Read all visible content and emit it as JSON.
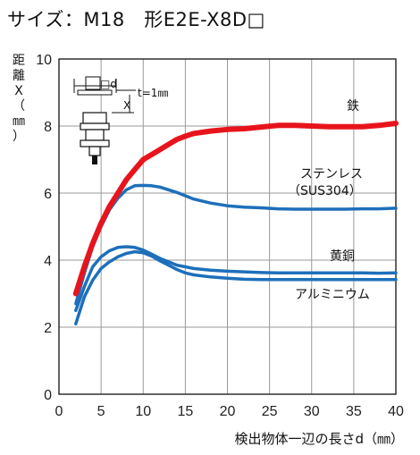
{
  "title": "サイズ：M18　形E2E-X8D□",
  "chart_data": {
    "type": "line",
    "xlabel": "検出物体一辺の長さd（㎜）",
    "ylabel_chars": [
      "距",
      "離",
      "X",
      "（",
      "㎜",
      "）"
    ],
    "xlim": [
      0,
      40
    ],
    "ylim": [
      0,
      10
    ],
    "xticks": [
      "0",
      "5",
      "10",
      "15",
      "20",
      "25",
      "30",
      "35",
      "40"
    ],
    "yticks": [
      "0",
      "2",
      "4",
      "6",
      "8",
      "10"
    ],
    "grid": true,
    "inset": {
      "d_label": "□d",
      "t_label": "t=1㎜",
      "x_label": "X"
    },
    "series": [
      {
        "name": "鉄",
        "color": "#e8141c",
        "width": 6,
        "x": [
          2,
          3,
          4,
          5,
          6,
          7,
          8,
          9,
          10,
          11,
          12,
          13,
          14,
          15,
          16,
          18,
          20,
          22,
          24,
          26,
          28,
          30,
          32,
          34,
          36,
          38,
          40
        ],
        "y": [
          3.0,
          3.8,
          4.5,
          5.1,
          5.6,
          6.0,
          6.4,
          6.7,
          7.0,
          7.15,
          7.3,
          7.45,
          7.6,
          7.7,
          7.78,
          7.85,
          7.9,
          7.92,
          7.97,
          8.02,
          8.02,
          8.0,
          7.98,
          7.98,
          7.98,
          8.02,
          8.08
        ]
      },
      {
        "name": "ステンレス",
        "name2": "（SUS304）",
        "color": "#1e6fba",
        "width": 3.5,
        "x": [
          2,
          3,
          4,
          5,
          6,
          7,
          8,
          9,
          10,
          11,
          12,
          13,
          14,
          15,
          16,
          18,
          20,
          22,
          24,
          26,
          28,
          30,
          32,
          34,
          36,
          38,
          40
        ],
        "y": [
          2.7,
          3.6,
          4.4,
          5.0,
          5.5,
          5.85,
          6.1,
          6.22,
          6.23,
          6.22,
          6.18,
          6.1,
          6.02,
          5.92,
          5.82,
          5.7,
          5.62,
          5.58,
          5.56,
          5.53,
          5.52,
          5.52,
          5.52,
          5.52,
          5.53,
          5.53,
          5.55
        ]
      },
      {
        "name": "黄銅",
        "color": "#1e6fba",
        "width": 3.5,
        "x": [
          2,
          3,
          4,
          5,
          6,
          7,
          8,
          9,
          10,
          11,
          12,
          13,
          14,
          15,
          16,
          18,
          20,
          22,
          24,
          26,
          28,
          30,
          32,
          34,
          36,
          38,
          40
        ],
        "y": [
          2.5,
          3.2,
          3.8,
          4.1,
          4.28,
          4.38,
          4.4,
          4.38,
          4.3,
          4.18,
          4.05,
          3.95,
          3.85,
          3.8,
          3.75,
          3.7,
          3.67,
          3.65,
          3.63,
          3.62,
          3.62,
          3.62,
          3.62,
          3.62,
          3.62,
          3.61,
          3.62
        ]
      },
      {
        "name": "アルミニウム",
        "color": "#1e6fba",
        "width": 3.5,
        "x": [
          2,
          3,
          4,
          5,
          6,
          7,
          8,
          9,
          10,
          11,
          12,
          13,
          14,
          15,
          16,
          18,
          20,
          22,
          24,
          26,
          28,
          30,
          32,
          34,
          36,
          38,
          40
        ],
        "y": [
          2.1,
          2.9,
          3.4,
          3.75,
          3.95,
          4.1,
          4.2,
          4.25,
          4.22,
          4.12,
          3.98,
          3.85,
          3.72,
          3.62,
          3.56,
          3.5,
          3.46,
          3.43,
          3.42,
          3.42,
          3.42,
          3.42,
          3.42,
          3.42,
          3.42,
          3.42,
          3.42
        ]
      }
    ]
  }
}
